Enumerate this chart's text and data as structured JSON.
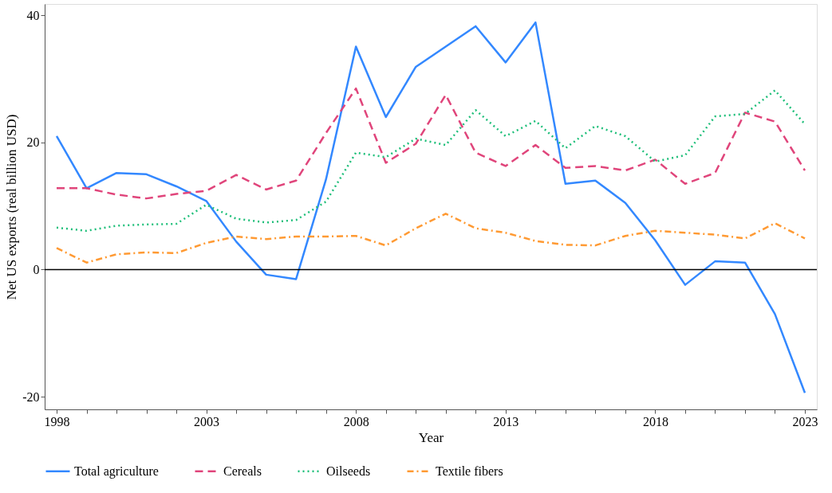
{
  "chart_data": {
    "type": "line",
    "xlabel": "Year",
    "ylabel": "Net US exports (real billion USD)",
    "x": [
      1998,
      1999,
      2000,
      2001,
      2002,
      2003,
      2004,
      2005,
      2006,
      2007,
      2008,
      2009,
      2010,
      2011,
      2012,
      2013,
      2014,
      2015,
      2016,
      2017,
      2018,
      2019,
      2020,
      2021,
      2022,
      2023
    ],
    "series": [
      {
        "name": "Total agriculture",
        "color": "#3388ff",
        "line_style": "solid",
        "values": [
          21.0,
          12.8,
          15.2,
          15.0,
          13.1,
          10.8,
          4.4,
          -0.8,
          -1.5,
          14.2,
          35.1,
          24.0,
          31.9,
          35.1,
          38.3,
          32.6,
          38.9,
          13.5,
          14.0,
          10.5,
          4.6,
          -2.4,
          1.3,
          1.1,
          -7.0,
          -19.4
        ]
      },
      {
        "name": "Cereals",
        "color": "#e0457b",
        "line_style": "dashed",
        "values": [
          12.8,
          12.8,
          11.8,
          11.2,
          11.9,
          12.4,
          14.9,
          12.6,
          14.0,
          21.5,
          28.5,
          16.8,
          19.8,
          27.5,
          18.4,
          16.3,
          19.6,
          16.0,
          16.3,
          15.6,
          17.3,
          13.5,
          15.2,
          24.7,
          23.3,
          15.6
        ]
      },
      {
        "name": "Oilseeds",
        "color": "#1fbf7a",
        "line_style": "dotted",
        "values": [
          6.6,
          6.1,
          6.9,
          7.1,
          7.2,
          10.2,
          8.0,
          7.4,
          7.8,
          10.7,
          18.4,
          17.7,
          20.6,
          19.6,
          25.1,
          21.0,
          23.4,
          19.1,
          22.6,
          21.0,
          17.0,
          18.0,
          24.1,
          24.5,
          28.2,
          22.9
        ]
      },
      {
        "name": "Textile fibers",
        "color": "#ff9a33",
        "line_style": "dashdot",
        "values": [
          3.4,
          1.1,
          2.4,
          2.7,
          2.6,
          4.2,
          5.2,
          4.8,
          5.2,
          5.2,
          5.3,
          3.8,
          6.5,
          8.8,
          6.5,
          5.8,
          4.5,
          3.9,
          3.8,
          5.3,
          6.1,
          5.8,
          5.5,
          4.9,
          7.3,
          4.9
        ]
      }
    ],
    "xlim": [
      1997.6,
      2023.4
    ],
    "ylim": [
      -22,
      41.8
    ],
    "xticks": [
      1998,
      {
        "value": 1999,
        "label": null
      },
      {
        "value": 2000,
        "label": null
      },
      {
        "value": 2001,
        "label": null
      },
      {
        "value": 2002,
        "label": null
      },
      2003,
      {
        "value": 2004,
        "label": null
      },
      {
        "value": 2005,
        "label": null
      },
      {
        "value": 2006,
        "label": null
      },
      {
        "value": 2007,
        "label": null
      },
      2008,
      {
        "value": 2009,
        "label": null
      },
      {
        "value": 2010,
        "label": null
      },
      {
        "value": 2011,
        "label": null
      },
      {
        "value": 2012,
        "label": null
      },
      2013,
      {
        "value": 2014,
        "label": null
      },
      {
        "value": 2015,
        "label": null
      },
      {
        "value": 2016,
        "label": null
      },
      {
        "value": 2017,
        "label": null
      },
      2018,
      {
        "value": 2019,
        "label": null
      },
      {
        "value": 2020,
        "label": null
      },
      {
        "value": 2021,
        "label": null
      },
      {
        "value": 2022,
        "label": null
      },
      2023
    ],
    "yticks": [
      -20,
      0,
      20,
      40
    ],
    "ref_lines": [
      {
        "axis": "y",
        "value": 0,
        "label": null,
        "color": "#000000",
        "line_style": "solid"
      }
    ],
    "grid": false,
    "legend": "bottom"
  }
}
